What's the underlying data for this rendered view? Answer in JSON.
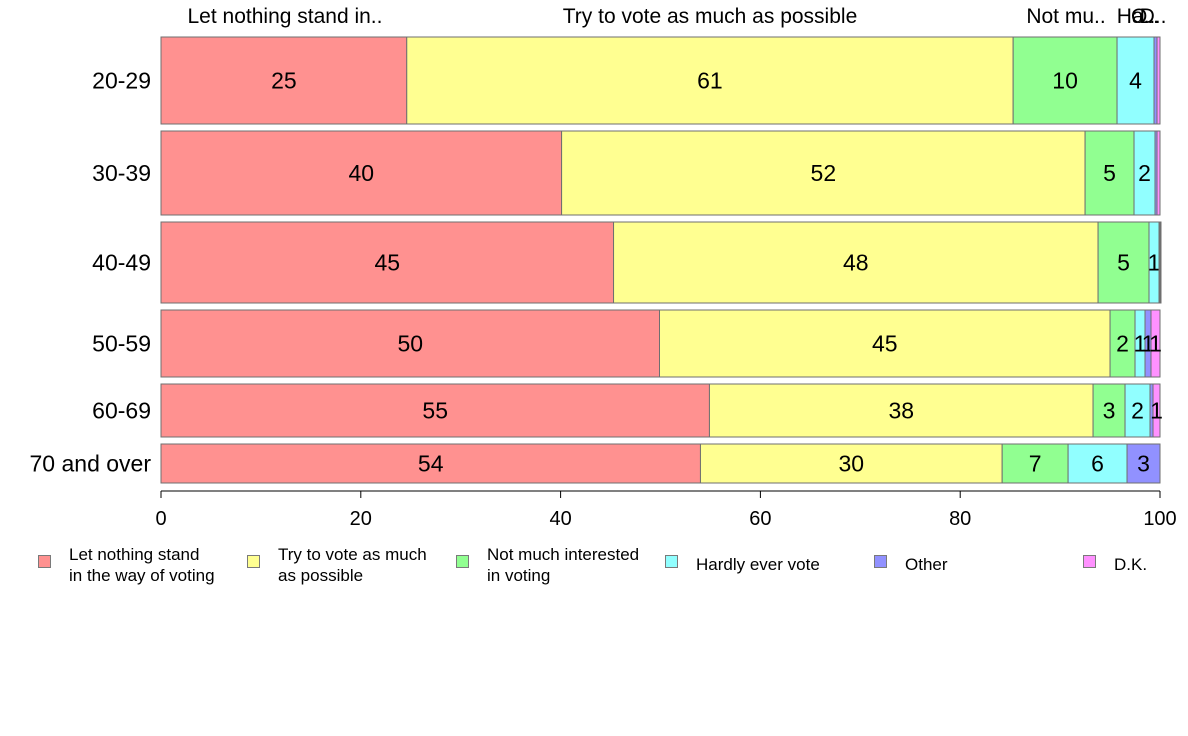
{
  "chart_data": {
    "type": "bar",
    "orientation": "horizontal",
    "stacked": true,
    "categories": [
      "20-29",
      "30-39",
      "40-49",
      "50-59",
      "60-69",
      "70 and over"
    ],
    "series": [
      {
        "name": "Let nothing stand in the way of voting",
        "legend_label": "Let nothing stand\nin the way of voting",
        "top_label": "Let nothing stand in..",
        "color": "#ff9190",
        "values": [
          24.6,
          40.1,
          45.3,
          49.9,
          54.9,
          54.0
        ]
      },
      {
        "name": "Try to vote as much as possible",
        "legend_label": "Try to vote as much\nas possible",
        "top_label": "Try to vote as much as possible",
        "color": "#ffff91",
        "values": [
          60.7,
          52.4,
          48.5,
          45.1,
          38.4,
          30.2
        ]
      },
      {
        "name": "Not much interested in voting",
        "legend_label": "Not much interested\nin voting",
        "top_label": "Not mu..",
        "color": "#91ff91",
        "values": [
          10.4,
          4.9,
          5.1,
          2.5,
          3.2,
          6.6
        ]
      },
      {
        "name": "Hardly ever vote",
        "legend_label": "Hardly ever vote",
        "top_label": "Ha..",
        "color": "#91ffff",
        "values": [
          3.7,
          2.1,
          1.0,
          1.0,
          2.5,
          5.9
        ]
      },
      {
        "name": "Other",
        "legend_label": "Other",
        "top_label": "O..",
        "color": "#9191ff",
        "values": [
          0.3,
          0.2,
          0.1,
          0.6,
          0.3,
          3.3
        ]
      },
      {
        "name": "D.K.",
        "legend_label": "D.K.",
        "top_label": "D..",
        "color": "#ff91ff",
        "values": [
          0.3,
          0.3,
          0.1,
          0.9,
          0.7,
          0.0
        ]
      }
    ],
    "data_labels": [
      [
        "25",
        "61",
        "10",
        "4",
        "",
        ""
      ],
      [
        "40",
        "52",
        "5",
        "2",
        "",
        ""
      ],
      [
        "45",
        "48",
        "5",
        "1",
        "",
        ""
      ],
      [
        "50",
        "45",
        "2",
        "1",
        "1",
        "1"
      ],
      [
        "55",
        "38",
        "3",
        "2",
        "",
        "1"
      ],
      [
        "54",
        "30",
        "7",
        "6",
        "3",
        ""
      ]
    ],
    "xlim": [
      0,
      100
    ],
    "xticks": [
      "0",
      "20",
      "40",
      "60",
      "80",
      "100"
    ],
    "xlabel": "",
    "ylabel": "",
    "grid": false,
    "legend_position": "bottom"
  }
}
